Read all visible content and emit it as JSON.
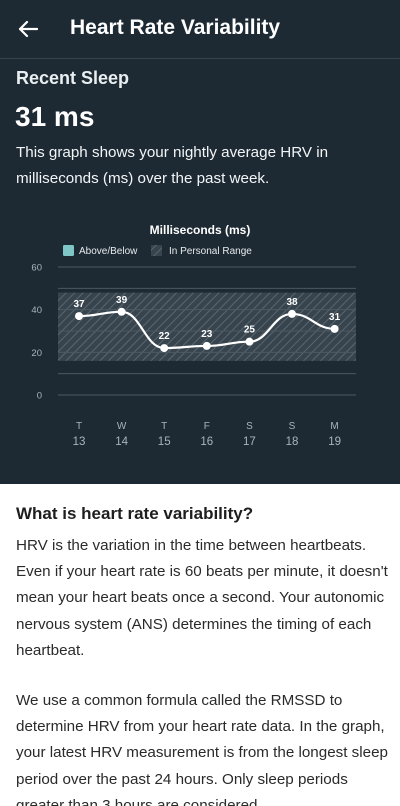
{
  "header": {
    "title": "Heart Rate Variability",
    "back_icon": "arrow-left-icon"
  },
  "summary": {
    "section_title": "Recent Sleep",
    "value": "31 ms",
    "description": "This graph shows your nightly average HRV in milliseconds (ms) over the past week."
  },
  "colors": {
    "background_dark": "#1e2a33",
    "range_band": "#3a4650",
    "legend_above_below": "#7fc6c9",
    "line": "#ffffff"
  },
  "chart_data": {
    "type": "line",
    "title": "Milliseconds (ms)",
    "legend": [
      "Above/Below",
      "In Personal Range"
    ],
    "legend_placement": "top",
    "x_days": [
      "T",
      "W",
      "T",
      "F",
      "S",
      "S",
      "M"
    ],
    "x_dates": [
      "13",
      "14",
      "15",
      "16",
      "17",
      "18",
      "19"
    ],
    "values": [
      37,
      39,
      22,
      23,
      25,
      38,
      31
    ],
    "ylim": [
      0,
      60
    ],
    "yticks": [
      "0",
      "20",
      "40",
      "60"
    ],
    "personal_range": [
      16,
      48
    ],
    "grid": true
  },
  "article": {
    "heading": "What is heart rate variability?",
    "paragraphs": [
      "HRV is the variation in the time between heartbeats. Even if your heart rate is 60 beats per minute, it doesn't mean your heart beats once a second. Your autonomic nervous system (ANS) determines the timing of each heartbeat.",
      "We use a common formula called the RMSSD to determine HRV from your heart rate data. In the graph, your latest HRV measurement is from the longest sleep period over the past 24 hours. Only sleep periods greater than 3 hours are considered."
    ]
  }
}
